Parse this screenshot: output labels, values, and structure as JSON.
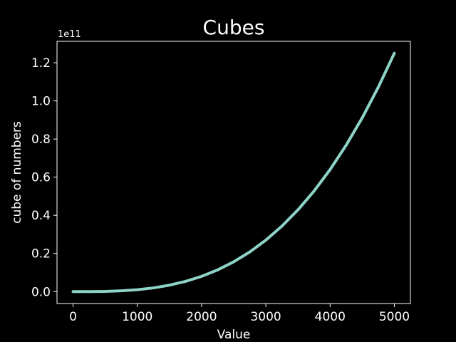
{
  "chart_data": {
    "type": "line",
    "title": "Cubes",
    "xlabel": "Value",
    "ylabel": "cube of numbers",
    "y_offset_label": "1e11",
    "xlim": [
      -250,
      5250
    ],
    "ylim": [
      -6250000000,
      131250000000
    ],
    "x_ticks": [
      0,
      1000,
      2000,
      3000,
      4000,
      5000
    ],
    "x_tick_labels": [
      "0",
      "1000",
      "2000",
      "3000",
      "4000",
      "5000"
    ],
    "y_ticks": [
      0,
      20000000000,
      40000000000,
      60000000000,
      80000000000,
      100000000000,
      120000000000
    ],
    "y_tick_labels": [
      "0.0",
      "0.2",
      "0.4",
      "0.6",
      "0.8",
      "1.0",
      "1.2"
    ],
    "grid": false,
    "series": [
      {
        "color": "#8dd3c7",
        "function": "y = x^3",
        "x": [
          0,
          250,
          500,
          750,
          1000,
          1250,
          1500,
          1750,
          2000,
          2250,
          2500,
          2750,
          3000,
          3250,
          3500,
          3750,
          4000,
          4250,
          4500,
          4750,
          5000
        ],
        "y": [
          0,
          15625000,
          125000000,
          421875000,
          1000000000,
          1953125000,
          3375000000,
          5359375000,
          8000000000,
          11390625000,
          15625000000,
          20796875000,
          27000000000,
          34328125000,
          42875000000,
          52734375000,
          64000000000,
          76765625000,
          91125000000,
          107171875000,
          125000000000
        ]
      }
    ]
  }
}
